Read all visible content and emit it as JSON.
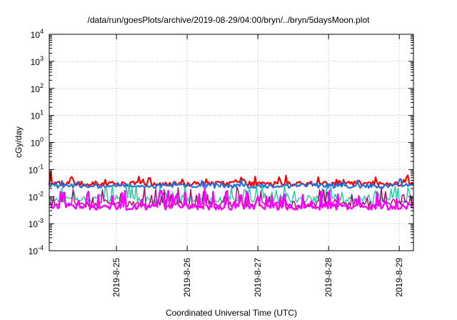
{
  "chart_data": {
    "type": "line",
    "title": "/data/run/goesPlots/archive/2019-08-29/04:00/bryn/../bryn/5daysMoon.plot",
    "xlabel": "Coordinated Universal Time (UTC)",
    "ylabel": "cGy/day",
    "yscale": "log",
    "ylim": [
      0.0001,
      10000
    ],
    "y_ticks": [
      {
        "base": "10",
        "exp": "-4"
      },
      {
        "base": "10",
        "exp": "-3"
      },
      {
        "base": "10",
        "exp": "-2"
      },
      {
        "base": "10",
        "exp": "-1"
      },
      {
        "base": "10",
        "exp": "0"
      },
      {
        "base": "10",
        "exp": "1"
      },
      {
        "base": "10",
        "exp": "2"
      },
      {
        "base": "10",
        "exp": "3"
      },
      {
        "base": "10",
        "exp": "4"
      }
    ],
    "xlim": [
      24.05,
      29.2
    ],
    "x_ticks": [
      {
        "label": "2019-8-25",
        "value": 25
      },
      {
        "label": "2019-8-26",
        "value": 26
      },
      {
        "label": "2019-8-27",
        "value": 27
      },
      {
        "label": "2019-8-28",
        "value": 28
      },
      {
        "label": "2019-8-29",
        "value": 29
      }
    ],
    "grid": true,
    "legend": "none",
    "series": [
      {
        "color": "#ff0000",
        "base": 0.03,
        "amp": 0.35,
        "spike_prob": 0.14,
        "spike_mult": 1.8,
        "lw": 2.2
      },
      {
        "color": "#1f6fe0",
        "base": 0.025,
        "amp": 0.35,
        "spike_prob": 0.1,
        "spike_mult": 1.5,
        "lw": 2.2
      },
      {
        "color": "#22c9a0",
        "base": 0.0075,
        "amp": 0.45,
        "spike_prob": 0.22,
        "spike_mult": 3.2,
        "lw": 1.4
      },
      {
        "color": "#b0007a",
        "base": 0.0052,
        "amp": 0.45,
        "spike_prob": 0.24,
        "spike_mult": 3.6,
        "lw": 1.4
      },
      {
        "color": "#ff00ff",
        "base": 0.0042,
        "amp": 0.45,
        "spike_prob": 0.26,
        "spike_mult": 4.0,
        "lw": 2.4
      }
    ]
  }
}
